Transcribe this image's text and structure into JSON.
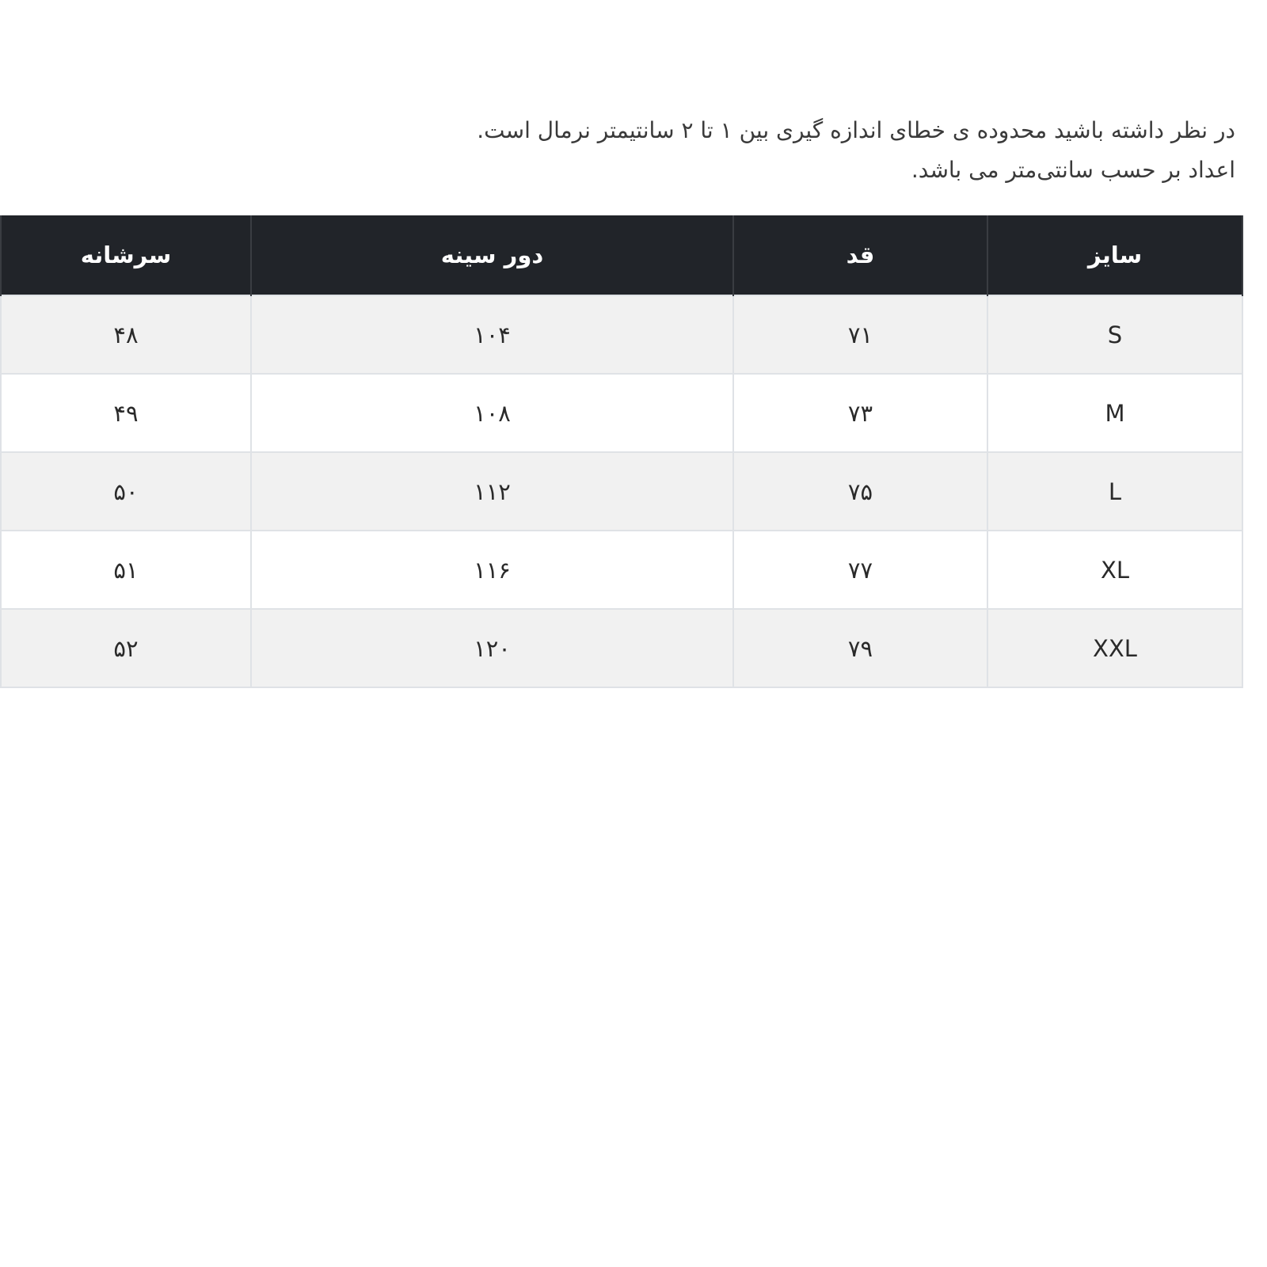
{
  "notes": [
    "در نظر داشته باشید محدوده ی خطای اندازه گیری بین ۱ تا ۲ سانتیمتر نرمال است.",
    "اعداد بر حسب سانتی‌متر می باشد."
  ],
  "table": {
    "headers": [
      "سایز",
      "قد",
      "دور سینه",
      "سرشانه"
    ],
    "rows": [
      [
        "S",
        "۷۱",
        "۱۰۴",
        "۴۸"
      ],
      [
        "M",
        "۷۳",
        "۱۰۸",
        "۴۹"
      ],
      [
        "L",
        "۷۵",
        "۱۱۲",
        "۵۰"
      ],
      [
        "XL",
        "۷۷",
        "۱۱۶",
        "۵۱"
      ],
      [
        "XXL",
        "۷۹",
        "۱۲۰",
        "۵۲"
      ]
    ]
  },
  "colors": {
    "header_bg": "#212429",
    "stripe_bg": "#f1f1f1",
    "border": "#dfe2e6"
  }
}
